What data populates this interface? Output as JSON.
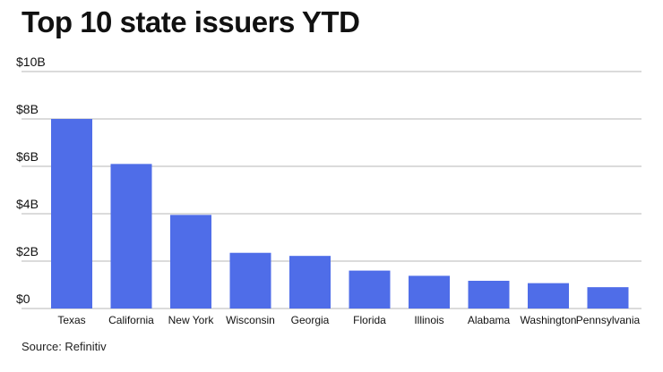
{
  "title": "Top 10 state issuers YTD",
  "source": "Source: Refinitiv",
  "colors": {
    "bar": "#4f6de8",
    "grid": "#b7b7b7",
    "text": "#111111"
  },
  "chart_data": {
    "type": "bar",
    "title": "Top 10 state issuers YTD",
    "xlabel": "",
    "ylabel": "",
    "categories": [
      "Texas",
      "California",
      "New York",
      "Wisconsin",
      "Georgia",
      "Florida",
      "Illinois",
      "Alabama",
      "Washington",
      "Pennsylvania"
    ],
    "values": [
      8.0,
      6.1,
      3.95,
      2.35,
      2.22,
      1.6,
      1.38,
      1.17,
      1.07,
      0.9
    ],
    "unit": "B",
    "ylim": [
      0,
      10
    ],
    "yticks": [
      0,
      2,
      4,
      6,
      8,
      10
    ],
    "ytick_labels": [
      "$0",
      "$2B",
      "$4B",
      "$6B",
      "$8B",
      "$10B"
    ],
    "grid": true,
    "legend": "none"
  }
}
